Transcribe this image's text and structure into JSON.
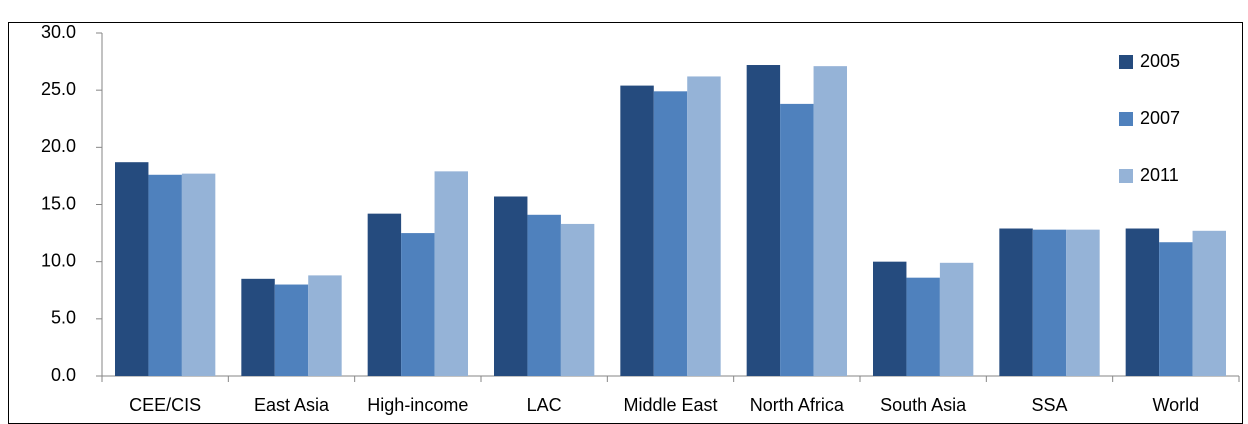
{
  "chart_data": {
    "type": "bar",
    "categories": [
      "CEE/CIS",
      "East Asia",
      "High-income",
      "LAC",
      "Middle East",
      "North Africa",
      "South Asia",
      "SSA",
      "World"
    ],
    "series": [
      {
        "name": "2005",
        "color": "#254b7e",
        "values": [
          18.7,
          8.5,
          14.2,
          15.7,
          25.4,
          27.2,
          10.0,
          12.9,
          12.9
        ]
      },
      {
        "name": "2007",
        "color": "#4f81bd",
        "values": [
          17.6,
          8.0,
          12.5,
          14.1,
          24.9,
          23.8,
          8.6,
          12.8,
          11.7
        ]
      },
      {
        "name": "2011",
        "color": "#95b3d7",
        "values": [
          17.7,
          8.8,
          17.9,
          13.3,
          26.2,
          27.1,
          9.9,
          12.8,
          12.7
        ]
      }
    ],
    "ylim": [
      0,
      30
    ],
    "yticks": [
      {
        "value": 0,
        "label": "0.0"
      },
      {
        "value": 5,
        "label": "5.0"
      },
      {
        "value": 10,
        "label": "10.0"
      },
      {
        "value": 15,
        "label": "15.0"
      },
      {
        "value": 20,
        "label": "20.0"
      },
      {
        "value": 25,
        "label": "25.0"
      },
      {
        "value": 30,
        "label": "30.0"
      }
    ],
    "grid": false,
    "legend": "right"
  }
}
